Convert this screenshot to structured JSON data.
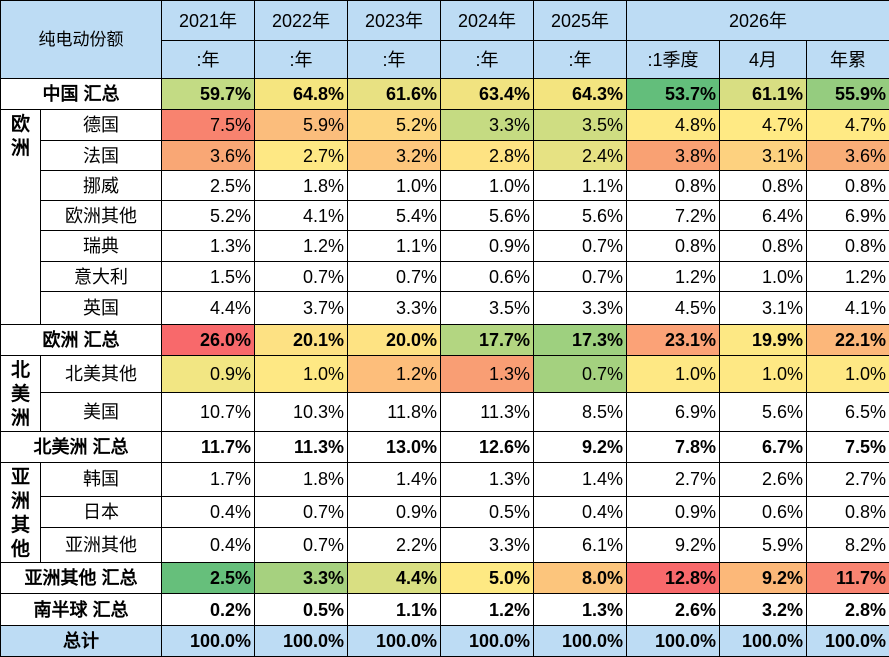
{
  "header": {
    "title": "纯电动份额",
    "years": [
      "2021年",
      "2022年",
      "2023年",
      "2024年",
      "2025年",
      "2026年"
    ],
    "subs": [
      ":年",
      ":年",
      ":年",
      ":年",
      ":年",
      ":1季度",
      "4月",
      "年累"
    ]
  },
  "rows": [
    {
      "label": "中国 汇总",
      "bold": true,
      "values": [
        "59.7%",
        "64.8%",
        "61.6%",
        "63.4%",
        "64.3%",
        "53.7%",
        "61.1%",
        "55.9%"
      ],
      "colors": [
        "#c3db84",
        "#f5e57f",
        "#e8e182",
        "#f1e380",
        "#f3e47f",
        "#63be7b",
        "#d8de82",
        "#95cc7f"
      ]
    },
    {
      "label": "德国",
      "group": "europe",
      "values": [
        "7.5%",
        "5.9%",
        "5.2%",
        "3.3%",
        "3.5%",
        "4.8%",
        "4.7%",
        "4.7%"
      ],
      "colors": [
        "#f8836f",
        "#fbbd7c",
        "#fdd680",
        "#c5db82",
        "#cfdd82",
        "#fee983",
        "#ffea84",
        "#ffea84"
      ]
    },
    {
      "label": "法国",
      "group": "europe",
      "values": [
        "3.6%",
        "2.7%",
        "3.2%",
        "2.8%",
        "2.4%",
        "3.8%",
        "3.1%",
        "3.6%"
      ],
      "colors": [
        "#f9a775",
        "#fee884",
        "#fdc77d",
        "#fee383",
        "#e6e283",
        "#f9a173",
        "#fdd17f",
        "#f9ad77"
      ]
    },
    {
      "label": "挪威",
      "group": "europe",
      "values": [
        "2.5%",
        "1.8%",
        "1.0%",
        "1.0%",
        "1.1%",
        "0.8%",
        "0.8%",
        "0.8%"
      ]
    },
    {
      "label": "欧洲其他",
      "group": "europe",
      "values": [
        "5.2%",
        "4.1%",
        "5.4%",
        "5.6%",
        "5.6%",
        "7.2%",
        "6.4%",
        "6.9%"
      ]
    },
    {
      "label": "瑞典",
      "group": "europe",
      "values": [
        "1.3%",
        "1.2%",
        "1.1%",
        "0.9%",
        "0.7%",
        "0.8%",
        "0.8%",
        "0.8%"
      ]
    },
    {
      "label": "意大利",
      "group": "europe",
      "values": [
        "1.5%",
        "0.7%",
        "0.7%",
        "0.6%",
        "0.7%",
        "1.2%",
        "1.0%",
        "1.2%"
      ]
    },
    {
      "label": "英国",
      "group": "europe",
      "values": [
        "4.4%",
        "3.7%",
        "3.3%",
        "3.5%",
        "3.3%",
        "4.5%",
        "3.1%",
        "4.1%"
      ]
    },
    {
      "label": "欧洲 汇总",
      "bold": true,
      "values": [
        "26.0%",
        "20.1%",
        "20.0%",
        "17.7%",
        "17.3%",
        "23.1%",
        "19.9%",
        "22.1%"
      ],
      "colors": [
        "#f8696b",
        "#fde183",
        "#fee383",
        "#b3d681",
        "#9ed07f",
        "#fba277",
        "#fde884",
        "#fcb77a"
      ]
    },
    {
      "label": "北美其他",
      "group": "northamerica",
      "values": [
        "0.9%",
        "1.0%",
        "1.2%",
        "1.3%",
        "0.7%",
        "1.0%",
        "1.0%",
        "1.0%"
      ],
      "colors": [
        "#f2e683",
        "#fee884",
        "#fdbe7b",
        "#f99e74",
        "#a4d17f",
        "#fee884",
        "#fee884",
        "#fee884"
      ]
    },
    {
      "label": "美国",
      "group": "northamerica",
      "values": [
        "10.7%",
        "10.3%",
        "11.8%",
        "11.3%",
        "8.5%",
        "6.9%",
        "5.6%",
        "6.5%"
      ]
    },
    {
      "label": "北美洲 汇总",
      "bold": true,
      "values": [
        "11.7%",
        "11.3%",
        "13.0%",
        "12.6%",
        "9.2%",
        "7.8%",
        "6.7%",
        "7.5%"
      ]
    },
    {
      "label": "韩国",
      "group": "asia",
      "values": [
        "1.7%",
        "1.8%",
        "1.4%",
        "1.3%",
        "1.4%",
        "2.7%",
        "2.6%",
        "2.7%"
      ]
    },
    {
      "label": "日本",
      "group": "asia",
      "values": [
        "0.4%",
        "0.7%",
        "0.9%",
        "0.5%",
        "0.4%",
        "0.9%",
        "0.6%",
        "0.8%"
      ]
    },
    {
      "label": "亚洲其他",
      "group": "asia",
      "values": [
        "0.4%",
        "0.7%",
        "2.2%",
        "3.3%",
        "6.1%",
        "9.2%",
        "5.9%",
        "8.2%"
      ]
    },
    {
      "label": "亚洲其他 汇总",
      "bold": true,
      "values": [
        "2.5%",
        "3.3%",
        "4.4%",
        "5.0%",
        "8.0%",
        "12.8%",
        "9.2%",
        "11.7%"
      ],
      "colors": [
        "#66bf7b",
        "#a6d17f",
        "#d9df82",
        "#fee983",
        "#fcc57c",
        "#f8696b",
        "#fcb879",
        "#f98471"
      ]
    },
    {
      "label": "南半球 汇总",
      "bold": true,
      "values": [
        "0.2%",
        "0.5%",
        "1.1%",
        "1.2%",
        "1.3%",
        "2.6%",
        "3.2%",
        "2.8%"
      ]
    },
    {
      "label": "总计",
      "bold": true,
      "total": true,
      "values": [
        "100.0%",
        "100.0%",
        "100.0%",
        "100.0%",
        "100.0%",
        "100.0%",
        "100.0%",
        "100.0%"
      ]
    }
  ],
  "groups": {
    "europe": {
      "label": "欧洲",
      "chars": [
        "欧",
        "洲"
      ]
    },
    "northamerica": {
      "label": "北美洲",
      "chars": [
        "北",
        "美",
        "洲"
      ]
    },
    "asia": {
      "label": "亚洲其他",
      "chars": [
        "亚",
        "洲",
        "其",
        "他"
      ]
    }
  }
}
